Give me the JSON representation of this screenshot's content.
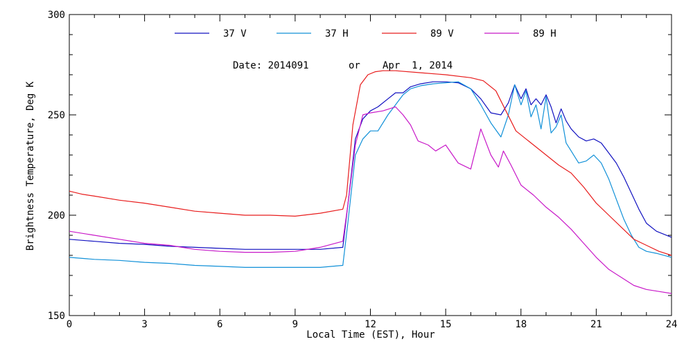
{
  "chart_data": {
    "type": "line",
    "title": "",
    "note": {
      "date_label": "Date: 2014091",
      "or_label": "or",
      "date_text": "Apr  1, 2014"
    },
    "xlabel": "Local Time (EST), Hour",
    "ylabel": "Brightness Temperature, Deg K",
    "xlim": [
      0,
      24
    ],
    "ylim": [
      150,
      300
    ],
    "xticks": [
      0,
      3,
      6,
      9,
      12,
      15,
      18,
      21,
      24
    ],
    "yticks": [
      150,
      200,
      250,
      300
    ],
    "grid": false,
    "legend_position": "top",
    "series": [
      {
        "name": "37 V",
        "color": "#1010c0",
        "x": [
          0,
          1,
          2,
          3,
          4,
          5,
          6,
          7,
          8,
          9,
          10,
          10.9,
          11.1,
          11.4,
          11.7,
          12,
          12.3,
          12.7,
          13,
          13.3,
          13.6,
          14,
          14.5,
          15,
          15.5,
          16,
          16.4,
          16.8,
          17.2,
          17.5,
          17.75,
          18,
          18.2,
          18.4,
          18.6,
          18.8,
          19,
          19.2,
          19.4,
          19.6,
          19.8,
          20,
          20.3,
          20.6,
          20.9,
          21.2,
          21.5,
          21.8,
          22.1,
          22.4,
          22.7,
          23,
          23.4,
          24
        ],
        "y": [
          188,
          187,
          186,
          185.5,
          184.5,
          184,
          183.5,
          183,
          183,
          183,
          183,
          184,
          205,
          238,
          248,
          252,
          254,
          258,
          261,
          261,
          264,
          265.5,
          266.5,
          266.5,
          266,
          263,
          258,
          251,
          250,
          256,
          265,
          258,
          263,
          255,
          258,
          255,
          260,
          254,
          246,
          253,
          247,
          243,
          239,
          237,
          238,
          236,
          231,
          226,
          219,
          211,
          203,
          196,
          192,
          189
        ]
      },
      {
        "name": "37 H",
        "color": "#1090d8",
        "x": [
          0,
          1,
          2,
          3,
          4,
          5,
          6,
          7,
          8,
          9,
          10,
          10.9,
          11.1,
          11.4,
          11.7,
          12,
          12.3,
          12.7,
          13,
          13.3,
          13.6,
          14,
          14.5,
          15,
          15.5,
          16,
          16.4,
          16.8,
          17.2,
          17.5,
          17.75,
          18,
          18.2,
          18.4,
          18.6,
          18.8,
          19,
          19.2,
          19.4,
          19.6,
          19.8,
          20,
          20.3,
          20.6,
          20.9,
          21.2,
          21.5,
          21.8,
          22.1,
          22.4,
          22.7,
          23,
          23.4,
          24
        ],
        "y": [
          179,
          178,
          177.5,
          176.5,
          176,
          175,
          174.5,
          174,
          174,
          174,
          174,
          175,
          196,
          230,
          238,
          242,
          242,
          250,
          255,
          260,
          263,
          264.5,
          265.5,
          266,
          266.5,
          263,
          255,
          246,
          239,
          250,
          265,
          255,
          262,
          249,
          255,
          243,
          259,
          241,
          244,
          250,
          236,
          232,
          226,
          227,
          230,
          226,
          218,
          208,
          198,
          190,
          184,
          182,
          181,
          179
        ]
      },
      {
        "name": "89 V",
        "color": "#e81c1c",
        "x": [
          0,
          0.5,
          1,
          2,
          3,
          4,
          5,
          6,
          7,
          8,
          9,
          10,
          10.9,
          11.05,
          11.3,
          11.6,
          11.9,
          12.2,
          12.5,
          13,
          14,
          15,
          16,
          16.5,
          17,
          17.4,
          17.8,
          18.2,
          18.6,
          19,
          19.5,
          20,
          20.5,
          21,
          21.5,
          22,
          22.5,
          23,
          23.5,
          24
        ],
        "y": [
          212,
          210.5,
          209.5,
          207.5,
          206,
          204,
          202,
          201,
          200,
          200,
          199.5,
          201,
          203,
          210,
          245,
          265,
          270,
          271.5,
          272,
          272,
          271,
          270,
          268.5,
          267,
          262,
          252,
          242,
          238,
          234,
          230,
          225,
          221,
          214,
          206,
          200,
          194,
          188,
          185,
          182,
          180
        ]
      },
      {
        "name": "89 H",
        "color": "#c818c8",
        "x": [
          0,
          1,
          2,
          3,
          4,
          5,
          6,
          7,
          8,
          9,
          10,
          10.9,
          11.1,
          11.4,
          11.7,
          12,
          12.5,
          13,
          13.3,
          13.6,
          13.9,
          14.3,
          14.6,
          15,
          15.5,
          16,
          16.4,
          16.8,
          17.1,
          17.3,
          17.6,
          18,
          18.5,
          19,
          19.5,
          20,
          20.5,
          21,
          21.5,
          22,
          22.5,
          23,
          23.5,
          24
        ],
        "y": [
          192,
          190,
          188,
          186,
          185,
          183,
          182,
          181.5,
          181.5,
          182,
          184,
          187,
          205,
          235,
          250,
          251,
          252,
          254,
          250,
          245,
          237,
          235,
          232,
          235,
          226,
          223,
          243,
          230,
          224,
          232,
          225,
          215,
          210,
          204,
          199,
          193,
          186,
          179,
          173,
          169,
          165,
          163,
          162,
          161
        ]
      }
    ]
  }
}
